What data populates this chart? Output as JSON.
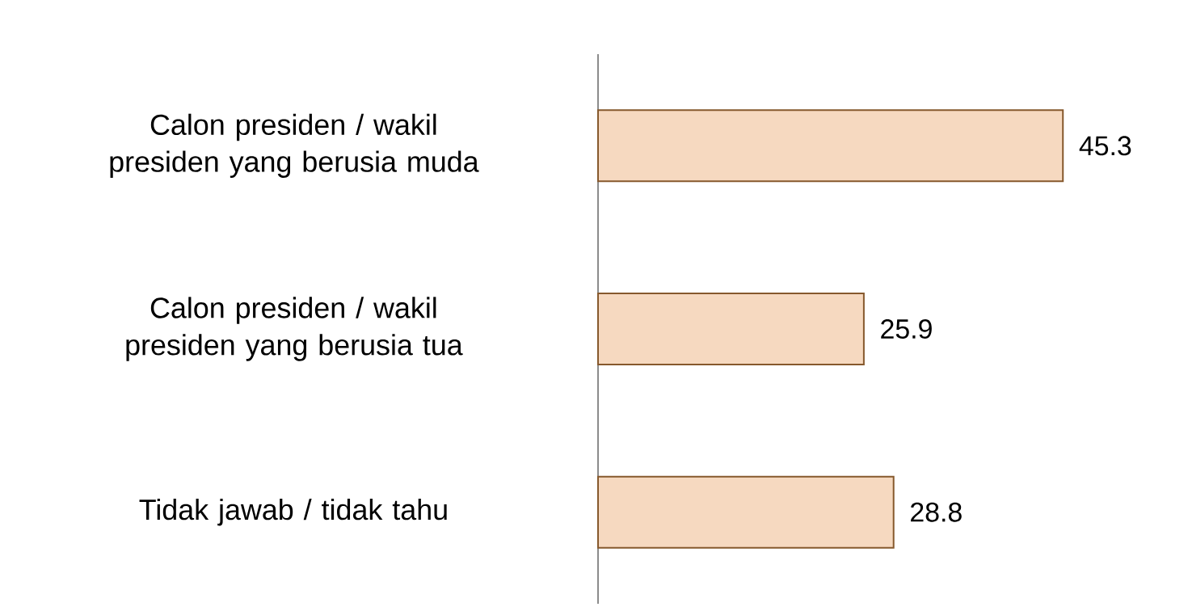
{
  "chart_data": {
    "type": "bar",
    "orientation": "horizontal",
    "categories": [
      "Calon presiden / wakil presiden yang berusia muda",
      "Calon presiden / wakil presiden yang berusia tua",
      "Tidak jawab / tidak tahu"
    ],
    "values": [
      45.3,
      25.9,
      28.8
    ],
    "color": "#f6d9c0",
    "data_labels": true
  }
}
